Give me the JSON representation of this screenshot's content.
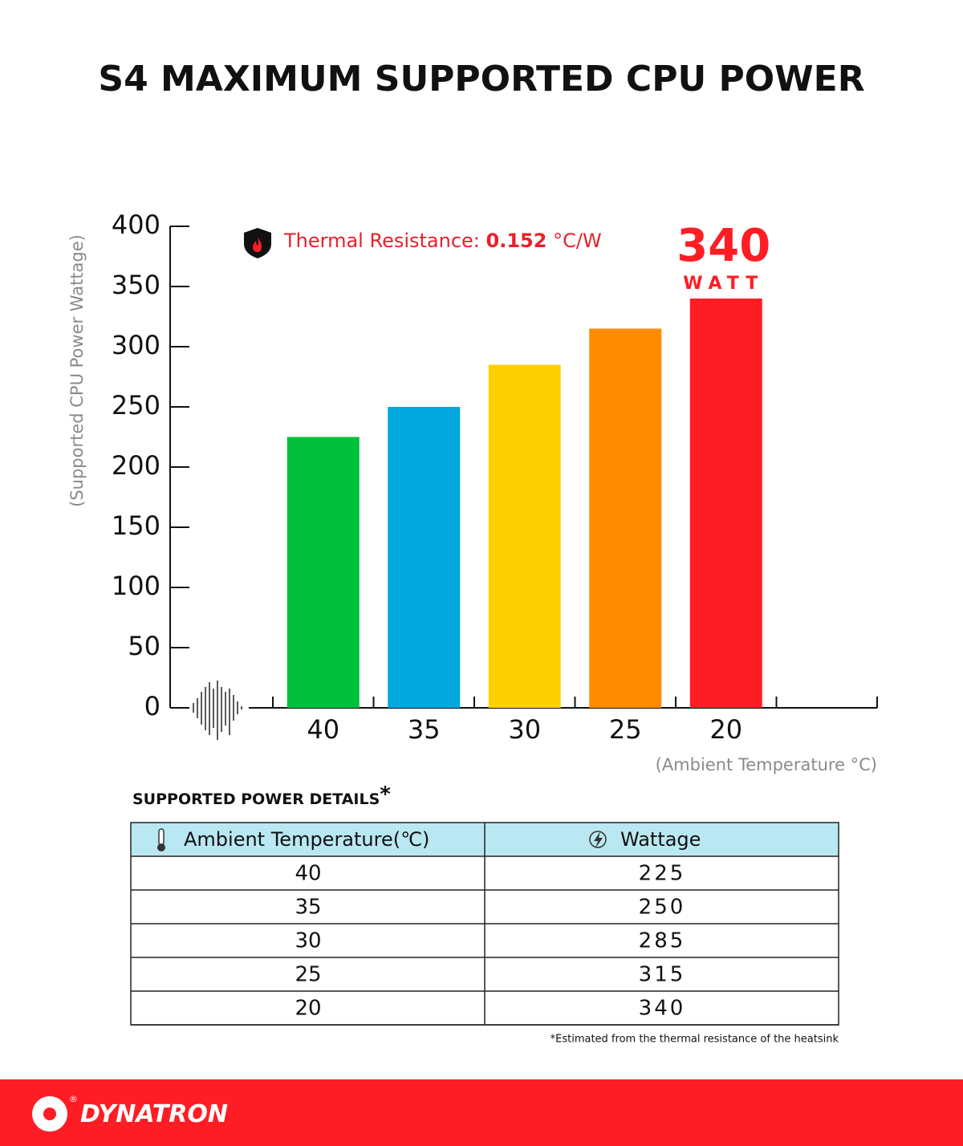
{
  "chart_data": {
    "type": "bar",
    "title": "S4 MAXIMUM SUPPORTED CPU POWER",
    "y_label": "(Supported CPU Power Wattage)",
    "x_label": "(Ambient Temperature °C)",
    "categories": [
      "40",
      "35",
      "30",
      "25",
      "20"
    ],
    "values": [
      225,
      250,
      285,
      315,
      340
    ],
    "colors": [
      "#00bf3a",
      "#00a8de",
      "#ffd000",
      "#ff8c00",
      "#ff1d25"
    ],
    "ylim": [
      0,
      400
    ],
    "yticks": [
      0,
      50,
      100,
      150,
      200,
      250,
      300,
      350,
      400
    ],
    "grid": false,
    "annotation": {
      "label": "Thermal Resistance:",
      "value": "0.152",
      "unit": "°C/W"
    },
    "highlight_unit": "WATT"
  },
  "table": {
    "title": "SUPPORTED POWER DETAILS",
    "title_mark": "*",
    "columns": [
      "Ambient Temperature(℃)",
      "Wattage"
    ],
    "footnote": "*Estimated from the thermal resistance of the heatsink"
  },
  "footer": {
    "brand": "DYNATRON",
    "mark": "®"
  }
}
